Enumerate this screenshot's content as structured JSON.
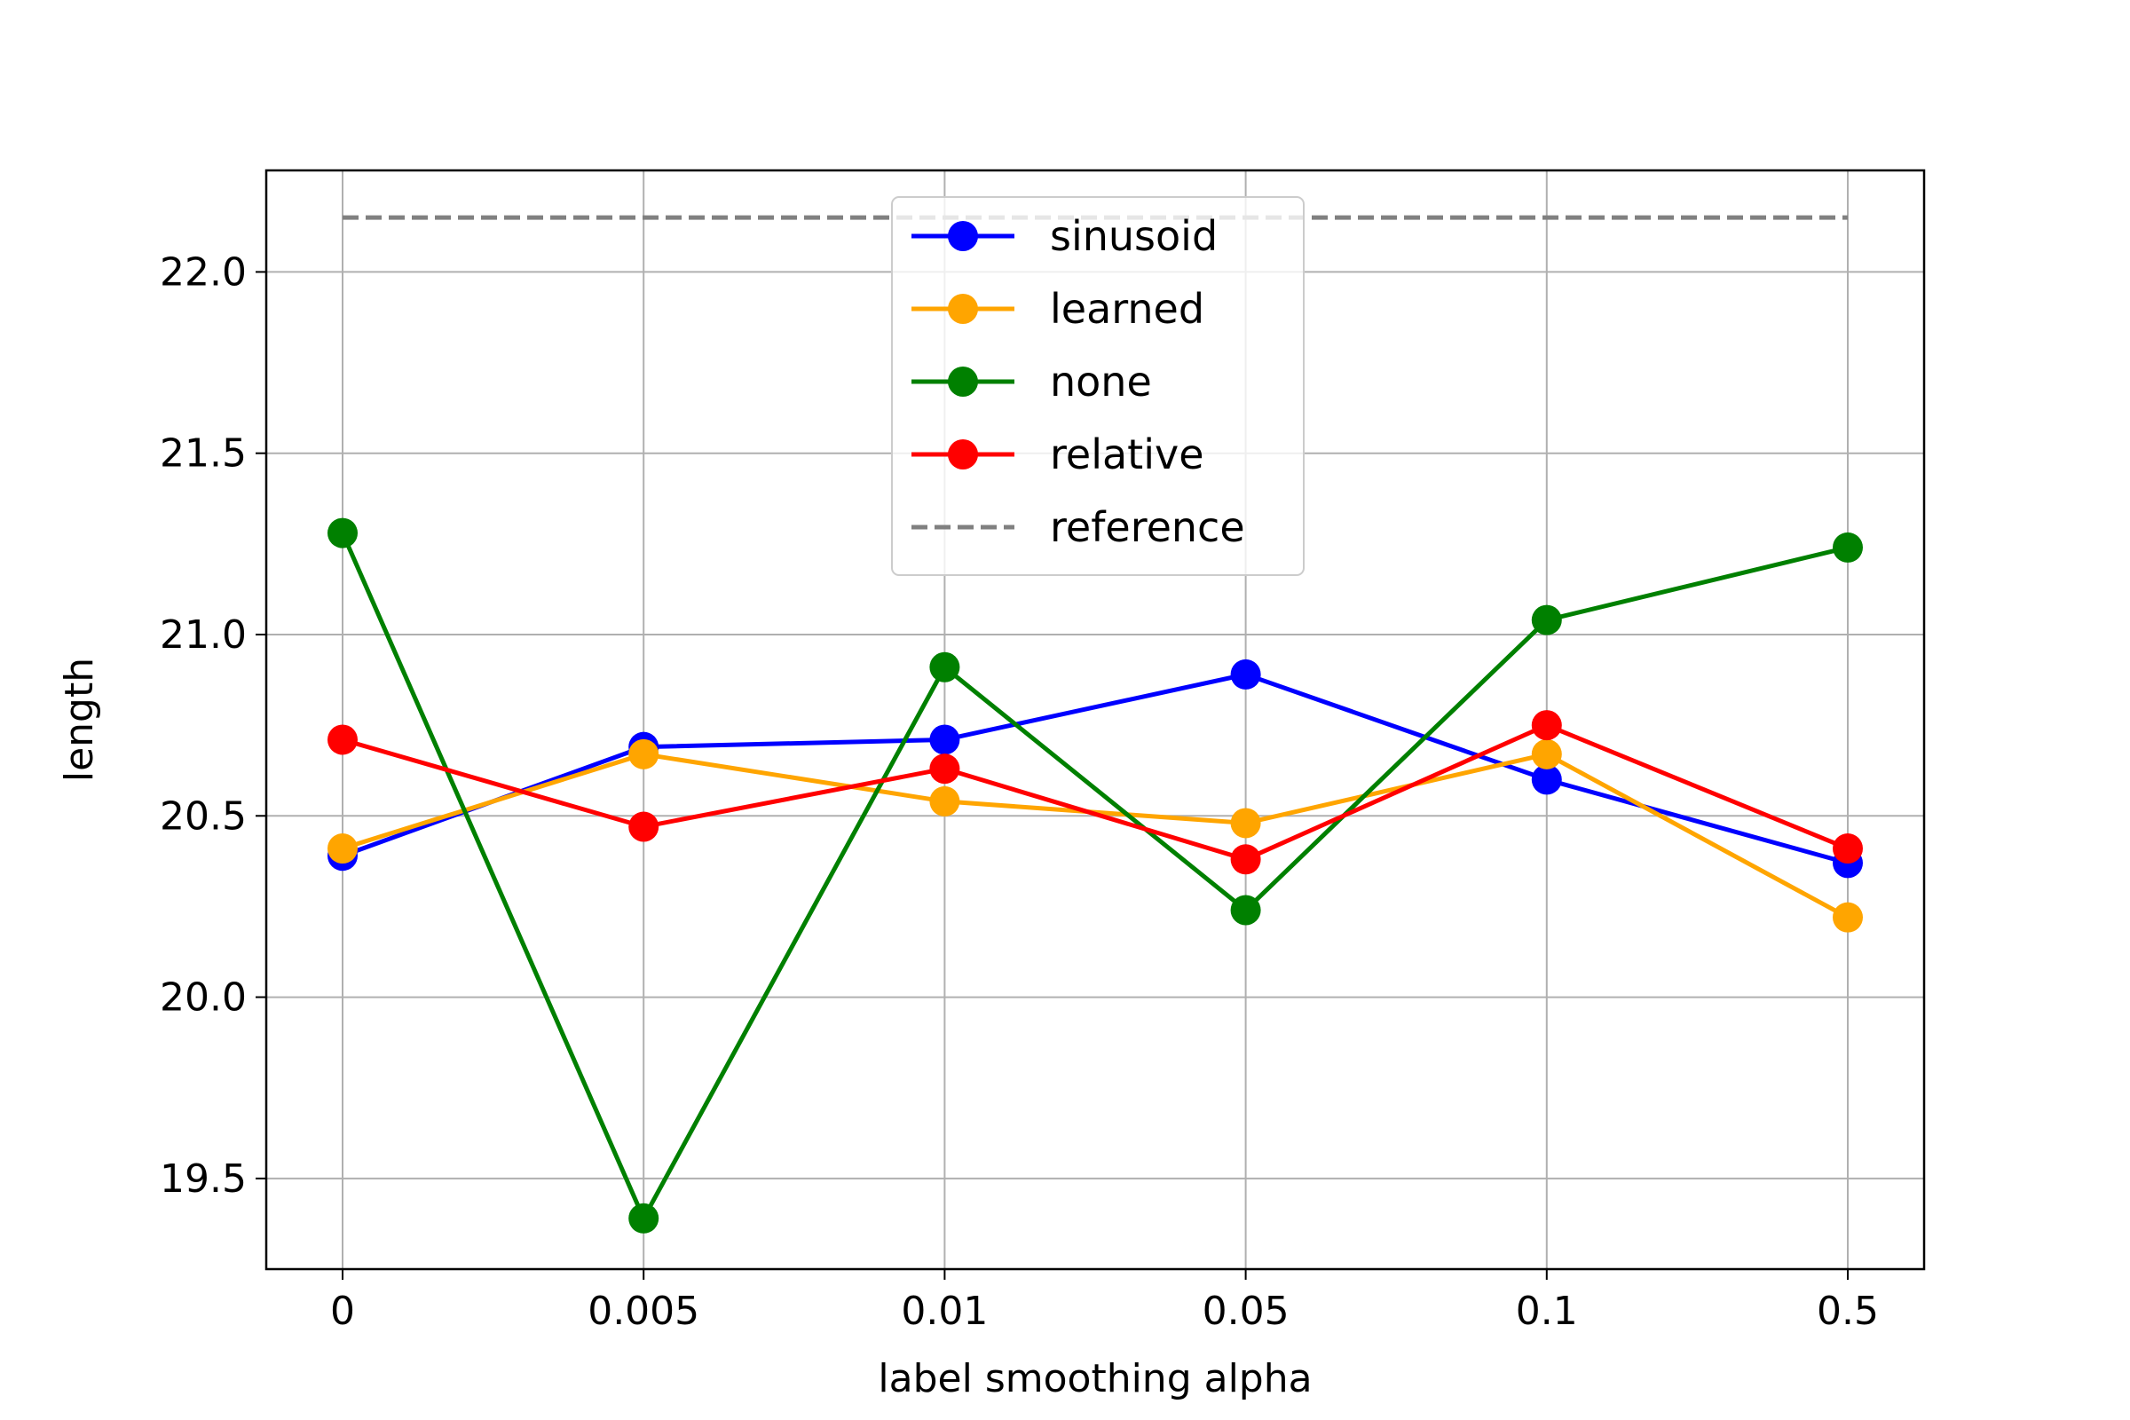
{
  "chart_data": {
    "type": "line",
    "title": "",
    "xlabel": "label smoothing alpha",
    "ylabel": "length",
    "categories": [
      "0",
      "0.005",
      "0.01",
      "0.05",
      "0.1",
      "0.5"
    ],
    "ylim": [
      19.25,
      22.28
    ],
    "yticks": [
      "19.5",
      "20.0",
      "20.5",
      "21.0",
      "21.5",
      "22.0"
    ],
    "grid": true,
    "legend_position": "top-center",
    "series": [
      {
        "name": "sinusoid",
        "color": "#0000ff",
        "marker": "circle",
        "values": [
          20.39,
          20.69,
          20.71,
          20.89,
          20.6,
          20.37
        ]
      },
      {
        "name": "learned",
        "color": "#ffa500",
        "marker": "circle",
        "values": [
          20.41,
          20.67,
          20.54,
          20.48,
          20.67,
          20.22
        ]
      },
      {
        "name": "none",
        "color": "#008000",
        "marker": "circle",
        "values": [
          21.28,
          19.39,
          20.91,
          20.24,
          21.04,
          21.24
        ]
      },
      {
        "name": "relative",
        "color": "#ff0000",
        "marker": "circle",
        "values": [
          20.71,
          20.47,
          20.63,
          20.38,
          20.75,
          20.41
        ]
      }
    ],
    "reference": {
      "name": "reference",
      "color": "#808080",
      "style": "dashed",
      "value": 22.15
    }
  }
}
